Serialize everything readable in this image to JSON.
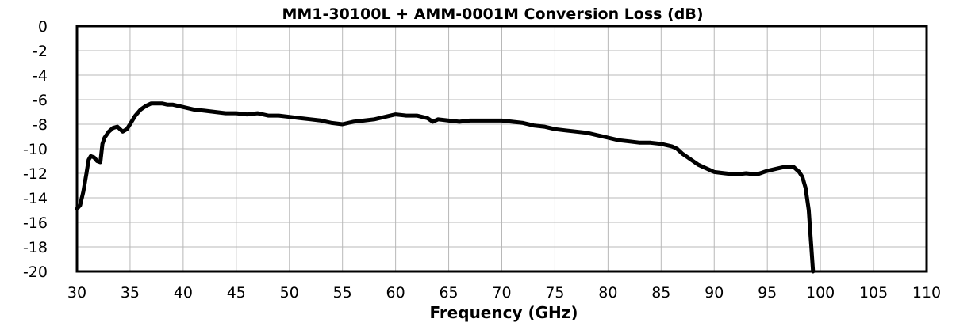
{
  "chart_data": {
    "type": "line",
    "title": "MM1-30100L + AMM-0001M Conversion Loss (dB)",
    "xlabel": "Frequency (GHz)",
    "ylabel": "",
    "xlim": [
      30,
      110
    ],
    "ylim": [
      -20,
      0
    ],
    "xticks": [
      "30",
      "35",
      "40",
      "45",
      "50",
      "55",
      "60",
      "65",
      "70",
      "75",
      "80",
      "85",
      "90",
      "95",
      "100",
      "105",
      "110"
    ],
    "yticks": [
      "0",
      "-2",
      "-4",
      "-6",
      "-8",
      "-10",
      "-12",
      "-14",
      "-16",
      "-18",
      "-20"
    ],
    "grid": true,
    "legend": "none",
    "series": [
      {
        "color": "#000000",
        "x": [
          30.0,
          30.3,
          30.6,
          30.9,
          31.1,
          31.3,
          31.6,
          31.9,
          32.2,
          32.4,
          32.6,
          33.0,
          33.4,
          33.8,
          34.3,
          34.7,
          35.0,
          35.5,
          36.0,
          36.5,
          37.0,
          37.5,
          38.0,
          38.5,
          39.0,
          40.0,
          41.0,
          42.0,
          43.0,
          44.0,
          45.0,
          46.0,
          47.0,
          48.0,
          49.0,
          50.0,
          51.0,
          52.0,
          53.0,
          54.0,
          55.0,
          56.0,
          57.0,
          58.0,
          59.0,
          60.0,
          61.0,
          62.0,
          63.0,
          63.5,
          64.0,
          65.0,
          66.0,
          67.0,
          68.0,
          69.0,
          70.0,
          71.0,
          72.0,
          73.0,
          74.0,
          75.0,
          76.0,
          77.0,
          78.0,
          79.0,
          80.0,
          81.0,
          82.0,
          83.0,
          84.0,
          85.0,
          86.0,
          86.5,
          87.0,
          87.5,
          88.0,
          88.5,
          89.0,
          89.5,
          90.0,
          91.0,
          92.0,
          93.0,
          94.0,
          95.0,
          96.0,
          96.5,
          97.0,
          97.5,
          98.0,
          98.3,
          98.6,
          98.9,
          99.1,
          99.3
        ],
        "values": [
          -14.9,
          -14.6,
          -13.5,
          -12.0,
          -10.9,
          -10.6,
          -10.7,
          -11.0,
          -11.1,
          -9.6,
          -9.1,
          -8.6,
          -8.3,
          -8.2,
          -8.6,
          -8.4,
          -8.0,
          -7.3,
          -6.8,
          -6.5,
          -6.3,
          -6.3,
          -6.3,
          -6.4,
          -6.4,
          -6.6,
          -6.8,
          -6.9,
          -7.0,
          -7.1,
          -7.1,
          -7.2,
          -7.1,
          -7.3,
          -7.3,
          -7.4,
          -7.5,
          -7.6,
          -7.7,
          -7.9,
          -8.0,
          -7.8,
          -7.7,
          -7.6,
          -7.4,
          -7.2,
          -7.3,
          -7.3,
          -7.5,
          -7.8,
          -7.6,
          -7.7,
          -7.8,
          -7.7,
          -7.7,
          -7.7,
          -7.7,
          -7.8,
          -7.9,
          -8.1,
          -8.2,
          -8.4,
          -8.5,
          -8.6,
          -8.7,
          -8.9,
          -9.1,
          -9.3,
          -9.4,
          -9.5,
          -9.5,
          -9.6,
          -9.8,
          -10.0,
          -10.4,
          -10.7,
          -11.0,
          -11.3,
          -11.5,
          -11.7,
          -11.9,
          -12.0,
          -12.1,
          -12.0,
          -12.1,
          -11.8,
          -11.6,
          -11.5,
          -11.5,
          -11.5,
          -11.9,
          -12.3,
          -13.2,
          -15.0,
          -17.5,
          -20.0
        ]
      }
    ]
  }
}
